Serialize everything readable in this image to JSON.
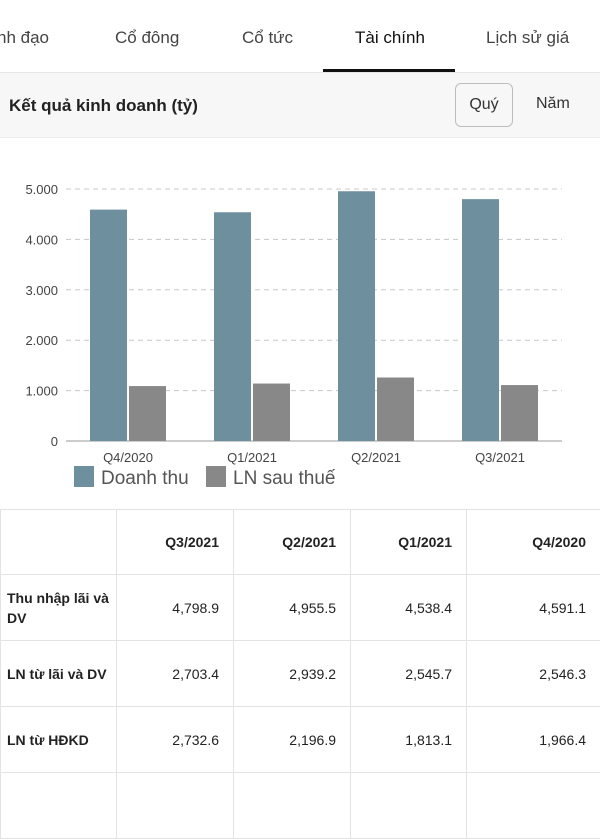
{
  "tabs": [
    {
      "label": "nh đạo"
    },
    {
      "label": "Cổ đông"
    },
    {
      "label": "Cổ tức"
    },
    {
      "label": "Tài chính"
    },
    {
      "label": "Lịch sử giá"
    }
  ],
  "section": {
    "title": "Kết quả kinh doanh (tỷ)",
    "period_quarter": "Quý",
    "period_year": "Năm"
  },
  "colors": {
    "revenue": "#6e8f9e",
    "profit": "#888888"
  },
  "chart_data": {
    "type": "bar",
    "categories": [
      "Q4/2020",
      "Q1/2021",
      "Q2/2021",
      "Q3/2021"
    ],
    "series": [
      {
        "name": "Doanh thu",
        "values": [
          4591.1,
          4538.4,
          4955.5,
          4798.9
        ]
      },
      {
        "name": "LN sau thuế",
        "values": [
          1090,
          1140,
          1260,
          1110
        ]
      }
    ],
    "y_ticks": [
      "0",
      "1.000",
      "2.000",
      "3.000",
      "4.000",
      "5.000"
    ],
    "ylim": [
      0,
      5000
    ],
    "grid": true,
    "legend_position": "bottom-left"
  },
  "table": {
    "columns": [
      "Q3/2021",
      "Q2/2021",
      "Q1/2021",
      "Q4/2020"
    ],
    "rows": [
      {
        "label": "Thu nhập lãi và DV",
        "values": [
          "4,798.9",
          "4,955.5",
          "4,538.4",
          "4,591.1"
        ]
      },
      {
        "label": "LN từ lãi và DV",
        "values": [
          "2,703.4",
          "2,939.2",
          "2,545.7",
          "2,546.3"
        ]
      },
      {
        "label": "LN từ HĐKD",
        "values": [
          "2,732.6",
          "2,196.9",
          "1,813.1",
          "1,966.4"
        ]
      }
    ]
  }
}
